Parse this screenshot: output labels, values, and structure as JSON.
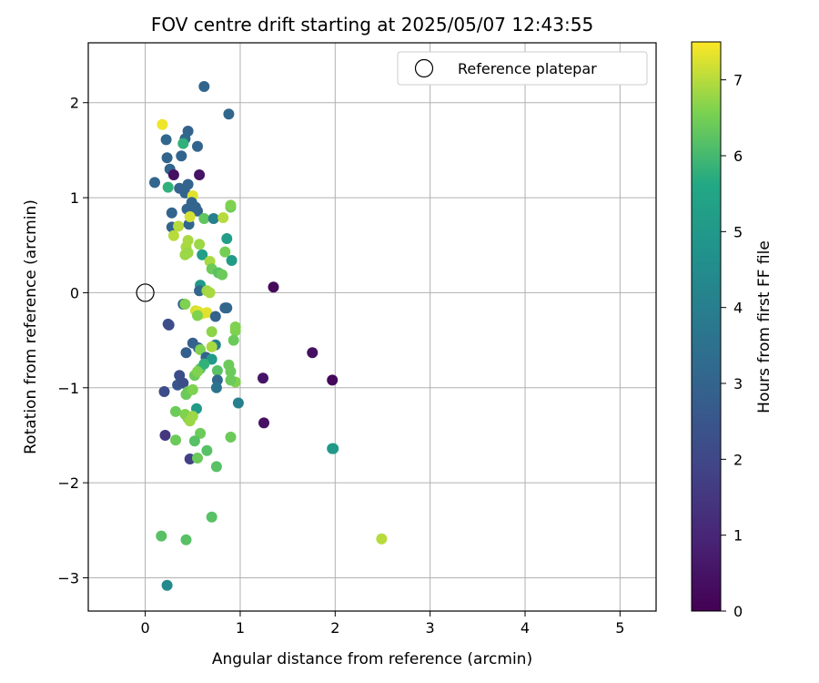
{
  "chart_data": {
    "type": "scatter",
    "title": "FOV centre drift starting at 2025/05/07 12:43:55",
    "xlabel": "Angular distance from reference (arcmin)",
    "ylabel": "Rotation from reference (arcmin)",
    "xlim": [
      -0.6,
      5.38
    ],
    "ylim": [
      -3.35,
      2.63
    ],
    "xticks": [
      0,
      1,
      2,
      3,
      4,
      5
    ],
    "xtick_labels": [
      "0",
      "1",
      "2",
      "3",
      "4",
      "5"
    ],
    "yticks": [
      -3,
      -2,
      -1,
      0,
      1,
      2
    ],
    "ytick_labels": [
      "−3",
      "−2",
      "−1",
      "0",
      "1",
      "2"
    ],
    "grid": true,
    "legend": {
      "position": "top-right",
      "entries": [
        "Reference platepar"
      ]
    },
    "colorbar": {
      "label": "Hours from first FF file",
      "colormap": "viridis",
      "range": [
        0,
        7.5
      ],
      "ticks": [
        0,
        1,
        2,
        3,
        4,
        5,
        6,
        7
      ],
      "tick_labels": [
        "0",
        "1",
        "2",
        "3",
        "4",
        "5",
        "6",
        "7"
      ]
    },
    "reference_point": {
      "name": "Reference platepar",
      "x": 0,
      "y": 0
    },
    "series": [
      {
        "points": [
          [
            0.62,
            2.17,
            3.0
          ],
          [
            0.88,
            1.88,
            3.1
          ],
          [
            0.45,
            1.7,
            3.0
          ],
          [
            0.42,
            1.62,
            3.2
          ],
          [
            0.4,
            1.57,
            5.8
          ],
          [
            0.55,
            1.54,
            3.0
          ],
          [
            0.22,
            1.61,
            3.1
          ],
          [
            0.18,
            1.77,
            7.4
          ],
          [
            0.38,
            1.44,
            3.0
          ],
          [
            0.23,
            1.42,
            3.0
          ],
          [
            0.26,
            1.3,
            3.0
          ],
          [
            0.3,
            1.24,
            0.4
          ],
          [
            0.57,
            1.24,
            0.5
          ],
          [
            0.1,
            1.16,
            3.1
          ],
          [
            0.24,
            1.11,
            5.8
          ],
          [
            0.36,
            1.1,
            3.0
          ],
          [
            0.45,
            1.14,
            3.0
          ],
          [
            0.42,
            1.05,
            3.0
          ],
          [
            0.5,
            1.02,
            7.3
          ],
          [
            0.49,
            0.95,
            3.0
          ],
          [
            0.53,
            0.9,
            3.0
          ],
          [
            0.44,
            0.88,
            3.0
          ],
          [
            0.28,
            0.84,
            3.0
          ],
          [
            0.55,
            0.86,
            3.0
          ],
          [
            0.62,
            0.78,
            6.3
          ],
          [
            0.72,
            0.78,
            4.0
          ],
          [
            0.82,
            0.79,
            7.0
          ],
          [
            0.9,
            0.9,
            6.4
          ],
          [
            0.9,
            0.92,
            6.6
          ],
          [
            0.28,
            0.69,
            3.0
          ],
          [
            0.35,
            0.7,
            7.0
          ],
          [
            0.46,
            0.72,
            3.1
          ],
          [
            0.47,
            0.8,
            7.2
          ],
          [
            0.3,
            0.6,
            7.0
          ],
          [
            0.45,
            0.55,
            6.9
          ],
          [
            0.43,
            0.48,
            6.9
          ],
          [
            0.57,
            0.51,
            6.8
          ],
          [
            0.86,
            0.57,
            5.2
          ],
          [
            0.42,
            0.4,
            6.8
          ],
          [
            0.45,
            0.42,
            6.8
          ],
          [
            0.6,
            0.4,
            5.2
          ],
          [
            0.84,
            0.43,
            6.5
          ],
          [
            0.68,
            0.33,
            6.9
          ],
          [
            0.91,
            0.34,
            5.1
          ],
          [
            0.7,
            0.25,
            6.4
          ],
          [
            0.77,
            0.21,
            6.2
          ],
          [
            0.81,
            0.19,
            6.4
          ],
          [
            0.58,
            0.08,
            5.0
          ],
          [
            0.57,
            0.02,
            3.1
          ],
          [
            0.65,
            0.02,
            6.8
          ],
          [
            0.68,
            0.0,
            6.9
          ],
          [
            1.35,
            0.06,
            0.2
          ],
          [
            0.4,
            -0.12,
            3.0
          ],
          [
            0.42,
            -0.12,
            6.6
          ],
          [
            0.84,
            -0.16,
            3.1
          ],
          [
            0.86,
            -0.16,
            3.1
          ],
          [
            0.53,
            -0.19,
            7.2
          ],
          [
            0.56,
            -0.2,
            7.3
          ],
          [
            0.6,
            -0.22,
            7.3
          ],
          [
            0.65,
            -0.21,
            7.3
          ],
          [
            0.55,
            -0.24,
            6.6
          ],
          [
            0.74,
            -0.25,
            3.0
          ],
          [
            0.24,
            -0.33,
            2.4
          ],
          [
            0.25,
            -0.34,
            2.2
          ],
          [
            0.95,
            -0.36,
            6.6
          ],
          [
            0.95,
            -0.4,
            6.6
          ],
          [
            0.7,
            -0.41,
            6.7
          ],
          [
            0.5,
            -0.53,
            2.8
          ],
          [
            0.56,
            -0.58,
            3.0
          ],
          [
            0.74,
            -0.55,
            4.0
          ],
          [
            0.7,
            -0.57,
            6.9
          ],
          [
            0.43,
            -0.63,
            2.8
          ],
          [
            0.58,
            -0.6,
            6.6
          ],
          [
            1.76,
            -0.63,
            0.4
          ],
          [
            0.64,
            -0.68,
            3.0
          ],
          [
            0.7,
            -0.7,
            5.1
          ],
          [
            0.93,
            -0.5,
            6.4
          ],
          [
            0.58,
            -0.8,
            6.2
          ],
          [
            0.62,
            -0.75,
            5.8
          ],
          [
            0.52,
            -0.87,
            6.4
          ],
          [
            0.55,
            -0.83,
            6.6
          ],
          [
            0.36,
            -0.87,
            2.2
          ],
          [
            0.76,
            -0.82,
            6.2
          ],
          [
            0.88,
            -0.76,
            6.4
          ],
          [
            0.9,
            -0.83,
            6.4
          ],
          [
            0.95,
            -0.94,
            6.6
          ],
          [
            0.76,
            -0.92,
            3.1
          ],
          [
            0.9,
            -0.92,
            6.4
          ],
          [
            1.24,
            -0.9,
            0.5
          ],
          [
            1.97,
            -0.92,
            0.2
          ],
          [
            0.34,
            -0.97,
            2.5
          ],
          [
            0.4,
            -0.95,
            2.2
          ],
          [
            0.2,
            -1.04,
            2.2
          ],
          [
            0.45,
            -1.04,
            6.4
          ],
          [
            0.43,
            -1.07,
            6.4
          ],
          [
            0.5,
            -1.02,
            6.6
          ],
          [
            0.75,
            -1.0,
            3.6
          ],
          [
            0.98,
            -1.16,
            4.0
          ],
          [
            0.54,
            -1.22,
            5.1
          ],
          [
            0.32,
            -1.25,
            6.4
          ],
          [
            0.42,
            -1.28,
            6.6
          ],
          [
            0.45,
            -1.32,
            6.6
          ],
          [
            0.47,
            -1.35,
            6.8
          ],
          [
            0.5,
            -1.3,
            6.8
          ],
          [
            1.25,
            -1.37,
            0.4
          ],
          [
            0.21,
            -1.5,
            1.5
          ],
          [
            0.58,
            -1.48,
            6.4
          ],
          [
            0.32,
            -1.55,
            6.4
          ],
          [
            0.52,
            -1.56,
            6.2
          ],
          [
            0.65,
            -1.66,
            6.2
          ],
          [
            0.9,
            -1.52,
            6.4
          ],
          [
            1.97,
            -1.64,
            5.0
          ],
          [
            1.98,
            -1.64,
            5.0
          ],
          [
            0.47,
            -1.75,
            1.8
          ],
          [
            0.55,
            -1.74,
            6.4
          ],
          [
            0.75,
            -1.83,
            6.2
          ],
          [
            0.7,
            -2.36,
            6.2
          ],
          [
            0.17,
            -2.56,
            6.2
          ],
          [
            0.43,
            -2.6,
            6.2
          ],
          [
            2.49,
            -2.59,
            7.0
          ],
          [
            0.23,
            -3.08,
            4.4
          ]
        ]
      }
    ]
  }
}
